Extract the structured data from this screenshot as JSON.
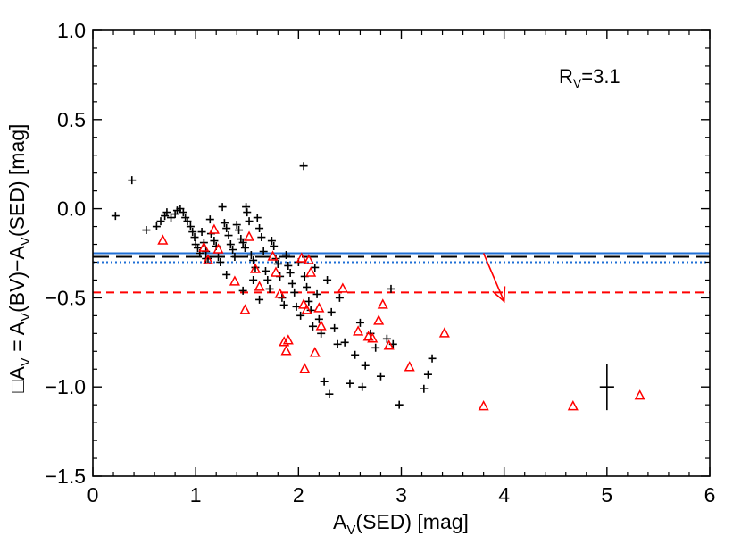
{
  "chart_data": {
    "type": "scatter",
    "title": "",
    "xlabel": {
      "main": "A",
      "sub": "V",
      "rest": "(SED) [mag]"
    },
    "ylabel": {
      "pre": "□A",
      "sub1": "V",
      "mid1": " = A",
      "sub2": "V",
      "mid2": "(BV)−A",
      "sub3": "V",
      "rest": "(SED) [mag]"
    },
    "xlim": [
      0,
      6
    ],
    "ylim": [
      -1.5,
      1.0
    ],
    "x_ticks": [
      0,
      1,
      2,
      3,
      4,
      5,
      6
    ],
    "x_tick_labels": [
      "0",
      "1",
      "2",
      "3",
      "4",
      "5",
      "6"
    ],
    "y_ticks": [
      -1.5,
      -1.0,
      -0.5,
      0.0,
      0.5,
      1.0
    ],
    "y_tick_labels": [
      "−1.5",
      "−1.0",
      "−0.5",
      "0.0",
      "0.5",
      "1.0"
    ],
    "annotation": {
      "pre": "R",
      "sub": "V",
      "rest": "=3.1"
    },
    "colors": {
      "plus": "#000000",
      "triangle": "#ff0000",
      "blue": "#1f6fd6",
      "dash": "#000000",
      "red_line": "#ff0000"
    },
    "reference_lines": [
      {
        "y": -0.25,
        "style": "solid",
        "color": "#1f6fd6"
      },
      {
        "y": -0.27,
        "style": "long-dash",
        "color": "#000000"
      },
      {
        "y": -0.3,
        "style": "dotted",
        "color": "#1f6fd6"
      },
      {
        "y": -0.47,
        "style": "dashed",
        "color": "#ff0000"
      }
    ],
    "arrow": {
      "from": [
        3.8,
        -0.25
      ],
      "to": [
        4.0,
        -0.52
      ],
      "color": "#ff0000"
    },
    "error_bar": {
      "x": 5.0,
      "y": -1.0,
      "xerr": 0.07,
      "yerr": 0.13
    },
    "series": [
      {
        "marker": "plus",
        "points": [
          [
            0.22,
            -0.04
          ],
          [
            0.38,
            0.16
          ],
          [
            0.52,
            -0.12
          ],
          [
            0.62,
            -0.1
          ],
          [
            0.66,
            -0.07
          ],
          [
            0.7,
            -0.04
          ],
          [
            0.72,
            -0.02
          ],
          [
            0.76,
            -0.05
          ],
          [
            0.8,
            -0.03
          ],
          [
            0.82,
            -0.01
          ],
          [
            0.85,
            0.0
          ],
          [
            0.88,
            -0.02
          ],
          [
            0.9,
            -0.05
          ],
          [
            0.92,
            -0.07
          ],
          [
            0.95,
            -0.1
          ],
          [
            0.97,
            -0.13
          ],
          [
            0.99,
            -0.16
          ],
          [
            1.0,
            -0.2
          ],
          [
            1.02,
            -0.22
          ],
          [
            1.04,
            -0.25
          ],
          [
            1.06,
            -0.13
          ],
          [
            1.08,
            -0.19
          ],
          [
            1.1,
            -0.24
          ],
          [
            1.12,
            -0.28
          ],
          [
            1.14,
            -0.06
          ],
          [
            1.15,
            -0.14
          ],
          [
            1.18,
            -0.18
          ],
          [
            1.2,
            -0.21
          ],
          [
            1.22,
            -0.27
          ],
          [
            1.24,
            -0.3
          ],
          [
            1.26,
            0.01
          ],
          [
            1.28,
            -0.08
          ],
          [
            1.3,
            -0.11
          ],
          [
            1.32,
            -0.15
          ],
          [
            1.34,
            -0.2
          ],
          [
            1.36,
            -0.23
          ],
          [
            1.38,
            -0.27
          ],
          [
            1.4,
            -0.09
          ],
          [
            1.42,
            -0.12
          ],
          [
            1.44,
            -0.17
          ],
          [
            1.46,
            -0.19
          ],
          [
            1.48,
            -0.22
          ],
          [
            1.49,
            0.01
          ],
          [
            1.5,
            -0.02
          ],
          [
            1.52,
            -0.07
          ],
          [
            1.54,
            -0.26
          ],
          [
            1.56,
            -0.29
          ],
          [
            1.58,
            -0.33
          ],
          [
            1.6,
            -0.05
          ],
          [
            1.62,
            -0.11
          ],
          [
            1.64,
            -0.16
          ],
          [
            1.66,
            -0.24
          ],
          [
            1.68,
            -0.35
          ],
          [
            1.7,
            -0.4
          ],
          [
            1.72,
            -0.45
          ],
          [
            1.74,
            -0.18
          ],
          [
            1.76,
            -0.21
          ],
          [
            1.78,
            -0.28
          ],
          [
            1.8,
            -0.31
          ],
          [
            1.82,
            -0.38
          ],
          [
            1.84,
            -0.5
          ],
          [
            1.86,
            -0.54
          ],
          [
            1.88,
            -0.26
          ],
          [
            1.9,
            -0.32
          ],
          [
            1.92,
            -0.36
          ],
          [
            1.94,
            -0.42
          ],
          [
            1.96,
            -0.47
          ],
          [
            1.98,
            -0.55
          ],
          [
            2.0,
            -0.3
          ],
          [
            2.02,
            -0.6
          ],
          [
            2.05,
            0.24
          ],
          [
            2.06,
            -0.38
          ],
          [
            2.08,
            -0.44
          ],
          [
            2.1,
            -0.52
          ],
          [
            2.12,
            -0.57
          ],
          [
            2.14,
            -0.66
          ],
          [
            2.16,
            -0.33
          ],
          [
            2.18,
            -0.48
          ],
          [
            2.2,
            -0.62
          ],
          [
            2.22,
            -0.7
          ],
          [
            2.25,
            -0.97
          ],
          [
            2.28,
            -0.4
          ],
          [
            2.3,
            -1.04
          ],
          [
            2.32,
            -0.58
          ],
          [
            2.35,
            -0.67
          ],
          [
            2.38,
            -0.76
          ],
          [
            2.4,
            -0.5
          ],
          [
            2.45,
            -0.75
          ],
          [
            2.5,
            -0.98
          ],
          [
            2.55,
            -0.82
          ],
          [
            2.6,
            -0.64
          ],
          [
            2.62,
            -1.0
          ],
          [
            2.65,
            -0.88
          ],
          [
            2.7,
            -0.7
          ],
          [
            2.75,
            -0.78
          ],
          [
            2.8,
            -0.94
          ],
          [
            2.86,
            -0.73
          ],
          [
            2.9,
            -0.45
          ],
          [
            2.92,
            -0.76
          ],
          [
            2.98,
            -1.1
          ],
          [
            3.22,
            -1.01
          ],
          [
            3.26,
            -0.93
          ],
          [
            3.3,
            -0.84
          ],
          [
            1.56,
            -0.4
          ],
          [
            1.62,
            -0.51
          ],
          [
            1.3,
            -0.37
          ],
          [
            1.46,
            -0.46
          ],
          [
            1.1,
            -0.28
          ]
        ]
      },
      {
        "marker": "triangle",
        "points": [
          [
            0.68,
            -0.18
          ],
          [
            1.08,
            -0.22
          ],
          [
            1.12,
            -0.29
          ],
          [
            1.18,
            -0.12
          ],
          [
            1.38,
            -0.41
          ],
          [
            1.48,
            -0.57
          ],
          [
            1.52,
            -0.16
          ],
          [
            1.58,
            -0.34
          ],
          [
            1.62,
            -0.44
          ],
          [
            1.75,
            -0.27
          ],
          [
            1.78,
            -0.36
          ],
          [
            1.82,
            -0.48
          ],
          [
            1.86,
            -0.75
          ],
          [
            1.88,
            -0.8
          ],
          [
            1.9,
            -0.74
          ],
          [
            2.03,
            -0.28
          ],
          [
            2.05,
            -0.54
          ],
          [
            2.08,
            -0.57
          ],
          [
            2.1,
            -0.29
          ],
          [
            2.12,
            -0.36
          ],
          [
            2.16,
            -0.81
          ],
          [
            2.2,
            -0.56
          ],
          [
            2.22,
            -0.66
          ],
          [
            2.43,
            -0.45
          ],
          [
            2.58,
            -0.69
          ],
          [
            2.68,
            -0.72
          ],
          [
            2.72,
            -0.73
          ],
          [
            2.78,
            -0.63
          ],
          [
            2.82,
            -0.54
          ],
          [
            2.88,
            -0.77
          ],
          [
            3.08,
            -0.89
          ],
          [
            3.42,
            -0.7
          ],
          [
            3.8,
            -1.11
          ],
          [
            4.67,
            -1.11
          ],
          [
            5.32,
            -1.05
          ],
          [
            2.06,
            -0.9
          ],
          [
            1.22,
            -0.23
          ]
        ]
      }
    ]
  }
}
